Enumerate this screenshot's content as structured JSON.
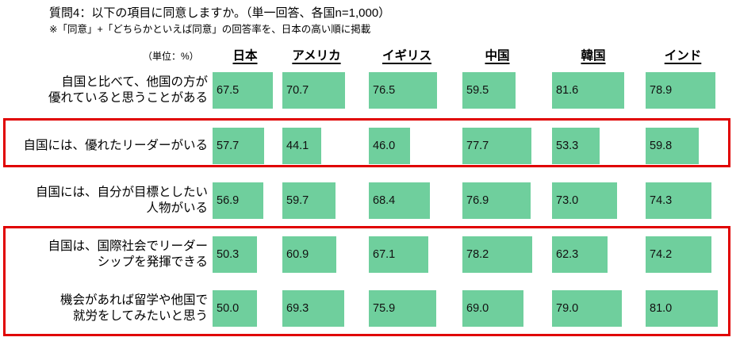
{
  "header": {
    "title": "質問4：以下の項目に同意しますか。（単一回答、各国n=1,000）",
    "note": "※「同意」+「どちらかといえば同意」の回答率を、日本の高い順に掲載",
    "unit_label": "（単位：%）"
  },
  "chart_data": {
    "type": "bar",
    "orientation": "horizontal",
    "unit": "%",
    "xlim": [
      0,
      100
    ],
    "legend_position": "none",
    "sort_note": "rows sorted by Japan's value, descending",
    "categories": [
      "日本",
      "アメリカ",
      "イギリス",
      "中国",
      "韓国",
      "インド"
    ],
    "rows": [
      {
        "label": "自国と比べて、他国の方が優れていると思うことがある",
        "label_lines": [
          "自国と比べて、他国の方が",
          "優れていると思うことがある"
        ],
        "values": [
          67.5,
          70.7,
          76.5,
          59.5,
          81.6,
          78.9
        ],
        "display": [
          "67.5",
          "70.7",
          "76.5",
          "59.5",
          "81.6",
          "78.9"
        ],
        "highlighted": false
      },
      {
        "label": "自国には、優れたリーダーがいる",
        "label_lines": [
          "自国には、優れたリーダーがいる"
        ],
        "values": [
          57.7,
          44.1,
          46.0,
          77.7,
          53.3,
          59.8
        ],
        "display": [
          "57.7",
          "44.1",
          "46.0",
          "77.7",
          "53.3",
          "59.8"
        ],
        "highlighted": true
      },
      {
        "label": "自国には、自分が目標としたい人物がいる",
        "label_lines": [
          "自国には、自分が目標としたい",
          "人物がいる"
        ],
        "values": [
          56.9,
          59.7,
          68.4,
          76.9,
          73.0,
          74.3
        ],
        "display": [
          "56.9",
          "59.7",
          "68.4",
          "76.9",
          "73.0",
          "74.3"
        ],
        "highlighted": false
      },
      {
        "label": "自国は、国際社会でリーダーシップを発揮できる",
        "label_lines": [
          "自国は、国際社会でリーダー",
          "シップを発揮できる"
        ],
        "values": [
          50.3,
          60.9,
          67.1,
          78.2,
          62.3,
          74.2
        ],
        "display": [
          "50.3",
          "60.9",
          "67.1",
          "78.2",
          "62.3",
          "74.2"
        ],
        "highlighted": true
      },
      {
        "label": "機会があれば留学や他国で就労をしてみたいと思う",
        "label_lines": [
          "機会があれば留学や他国で",
          "就労をしてみたいと思う"
        ],
        "values": [
          50.0,
          69.3,
          75.9,
          69.0,
          79.0,
          81.0
        ],
        "display": [
          "50.0",
          "69.3",
          "75.9",
          "69.0",
          "79.0",
          "81.0"
        ],
        "highlighted": true
      }
    ],
    "colors": {
      "bar": "#6fcf9d",
      "highlight_border": "#e00000"
    }
  }
}
